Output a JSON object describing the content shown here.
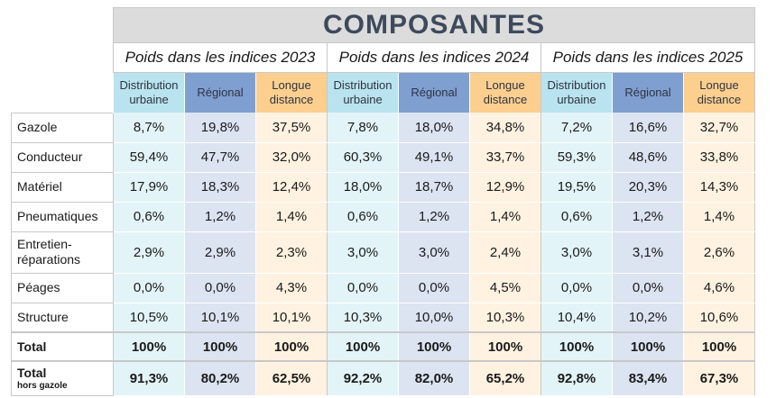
{
  "title": "COMPOSANTES",
  "years": [
    {
      "label": "Poids dans les indices 2023"
    },
    {
      "label": "Poids dans les indices 2024"
    },
    {
      "label": "Poids dans les indices 2025"
    }
  ],
  "subheaders": [
    "Distribution urbaine",
    "Régional",
    "Longue distance"
  ],
  "rows": [
    {
      "label": "Gazole",
      "values": [
        "8,7%",
        "19,8%",
        "37,5%",
        "7,8%",
        "18,0%",
        "34,8%",
        "7,2%",
        "16,6%",
        "32,7%"
      ]
    },
    {
      "label": "Conducteur",
      "values": [
        "59,4%",
        "47,7%",
        "32,0%",
        "60,3%",
        "49,1%",
        "33,7%",
        "59,3%",
        "48,6%",
        "33,8%"
      ]
    },
    {
      "label": "Matériel",
      "values": [
        "17,9%",
        "18,3%",
        "12,4%",
        "18,0%",
        "18,7%",
        "12,9%",
        "19,5%",
        "20,3%",
        "14,3%"
      ]
    },
    {
      "label": "Pneumatiques",
      "values": [
        "0,6%",
        "1,2%",
        "1,4%",
        "0,6%",
        "1,2%",
        "1,4%",
        "0,6%",
        "1,2%",
        "1,4%"
      ]
    },
    {
      "label": "Entretien-réparations",
      "values": [
        "2,9%",
        "2,9%",
        "2,3%",
        "3,0%",
        "3,0%",
        "2,4%",
        "3,0%",
        "3,1%",
        "2,6%"
      ]
    },
    {
      "label": "Péages",
      "values": [
        "0,0%",
        "0,0%",
        "4,3%",
        "0,0%",
        "0,0%",
        "4,5%",
        "0,0%",
        "0,0%",
        "4,6%"
      ]
    },
    {
      "label": "Structure",
      "values": [
        "10,5%",
        "10,1%",
        "10,1%",
        "10,3%",
        "10,0%",
        "10,3%",
        "10,4%",
        "10,2%",
        "10,6%"
      ]
    }
  ],
  "total": {
    "label": "Total",
    "values": [
      "100%",
      "100%",
      "100%",
      "100%",
      "100%",
      "100%",
      "100%",
      "100%",
      "100%"
    ]
  },
  "total_hors_gazole": {
    "label": "Total",
    "sublabel": "hors gazole",
    "values": [
      "91,3%",
      "80,2%",
      "62,5%",
      "92,2%",
      "82,0%",
      "65,2%",
      "92,8%",
      "83,4%",
      "67,3%"
    ]
  },
  "colors": {
    "urbaine": "#b9e3ef",
    "regional": "#7f9fd1",
    "longue": "#fccf8e",
    "title_bg": "#dcdcdc",
    "title_text": "#3e4a5c"
  }
}
